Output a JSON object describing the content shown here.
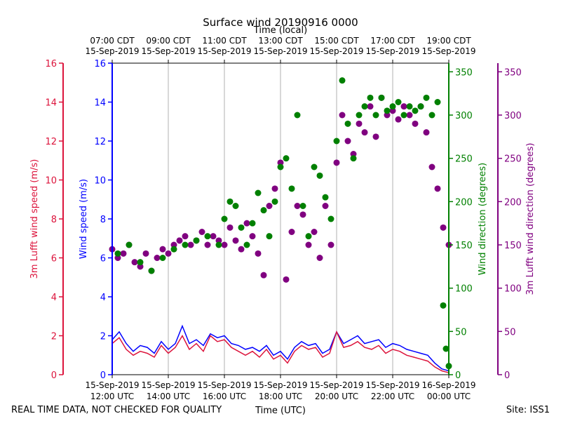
{
  "title": "Surface wind 20190916 0000",
  "top_axis_label": "Time (local)",
  "bottom_axis_label": "Time (UTC)",
  "footer_left": "REAL TIME DATA, NOT CHECKED FOR QUALITY",
  "footer_right": "Site: ISS1",
  "colors": {
    "wind_speed": "#0000ff",
    "lufft_speed": "#dc143c",
    "wind_dir": "#008000",
    "lufft_dir": "#800080",
    "grid": "#b0b0b0"
  },
  "chart_data": {
    "type": "line+scatter",
    "x_range_utc_hours": [
      12.0,
      24.0
    ],
    "x_ticks": [
      {
        "hour": 12,
        "utc_date": "15-Sep-2019",
        "utc_time": "12:00 UTC",
        "local_time": "07:00 CDT",
        "local_date": "15-Sep-2019"
      },
      {
        "hour": 14,
        "utc_date": "15-Sep-2019",
        "utc_time": "14:00 UTC",
        "local_time": "09:00 CDT",
        "local_date": "15-Sep-2019"
      },
      {
        "hour": 16,
        "utc_date": "15-Sep-2019",
        "utc_time": "16:00 UTC",
        "local_time": "11:00 CDT",
        "local_date": "15-Sep-2019"
      },
      {
        "hour": 18,
        "utc_date": "15-Sep-2019",
        "utc_time": "18:00 UTC",
        "local_time": "13:00 CDT",
        "local_date": "15-Sep-2019"
      },
      {
        "hour": 20,
        "utc_date": "15-Sep-2019",
        "utc_time": "20:00 UTC",
        "local_time": "15:00 CDT",
        "local_date": "15-Sep-2019"
      },
      {
        "hour": 22,
        "utc_date": "15-Sep-2019",
        "utc_time": "22:00 UTC",
        "local_time": "17:00 CDT",
        "local_date": "15-Sep-2019"
      },
      {
        "hour": 24,
        "utc_date": "16-Sep-2019",
        "utc_time": "00:00 UTC",
        "local_time": "19:00 CDT",
        "local_date": "15-Sep-2019"
      }
    ],
    "axes": {
      "lufft_speed": {
        "label": "3m Lufft wind speed (m/s)",
        "range": [
          0,
          16
        ],
        "ticks": [
          0,
          2,
          4,
          6,
          8,
          10,
          12,
          14,
          16
        ]
      },
      "wind_speed": {
        "label": "Wind speed (m/s)",
        "range": [
          0,
          16
        ],
        "ticks": [
          0,
          2,
          4,
          6,
          8,
          10,
          12,
          14,
          16
        ]
      },
      "wind_dir": {
        "label": "Wind direction (degrees)",
        "range": [
          0,
          360
        ],
        "ticks": [
          0,
          50,
          100,
          150,
          200,
          250,
          300,
          350
        ]
      },
      "lufft_dir": {
        "label": "3m Lufft wind direction (degrees)",
        "range": [
          0,
          360
        ],
        "ticks": [
          0,
          50,
          100,
          150,
          200,
          250,
          300,
          350
        ]
      }
    },
    "series": [
      {
        "name": "Wind speed",
        "kind": "line",
        "axis": "wind_speed",
        "points": [
          [
            12.0,
            1.8
          ],
          [
            12.25,
            2.2
          ],
          [
            12.5,
            1.6
          ],
          [
            12.75,
            1.2
          ],
          [
            13.0,
            1.5
          ],
          [
            13.25,
            1.4
          ],
          [
            13.5,
            1.1
          ],
          [
            13.75,
            1.7
          ],
          [
            14.0,
            1.3
          ],
          [
            14.25,
            1.6
          ],
          [
            14.5,
            2.5
          ],
          [
            14.75,
            1.6
          ],
          [
            15.0,
            1.8
          ],
          [
            15.25,
            1.5
          ],
          [
            15.5,
            2.1
          ],
          [
            15.75,
            1.9
          ],
          [
            16.0,
            2.0
          ],
          [
            16.25,
            1.6
          ],
          [
            16.5,
            1.5
          ],
          [
            16.75,
            1.3
          ],
          [
            17.0,
            1.4
          ],
          [
            17.25,
            1.2
          ],
          [
            17.5,
            1.5
          ],
          [
            17.75,
            1.0
          ],
          [
            18.0,
            1.2
          ],
          [
            18.25,
            0.8
          ],
          [
            18.5,
            1.4
          ],
          [
            18.75,
            1.7
          ],
          [
            19.0,
            1.5
          ],
          [
            19.25,
            1.6
          ],
          [
            19.5,
            1.1
          ],
          [
            19.75,
            1.3
          ],
          [
            20.0,
            2.2
          ],
          [
            20.25,
            1.6
          ],
          [
            20.5,
            1.8
          ],
          [
            20.75,
            2.0
          ],
          [
            21.0,
            1.6
          ],
          [
            21.25,
            1.7
          ],
          [
            21.5,
            1.8
          ],
          [
            21.75,
            1.4
          ],
          [
            22.0,
            1.6
          ],
          [
            22.25,
            1.5
          ],
          [
            22.5,
            1.3
          ],
          [
            22.75,
            1.2
          ],
          [
            23.0,
            1.1
          ],
          [
            23.25,
            1.0
          ],
          [
            23.5,
            0.6
          ],
          [
            23.75,
            0.3
          ],
          [
            24.0,
            0.2
          ]
        ]
      },
      {
        "name": "3m Lufft wind speed",
        "kind": "line",
        "axis": "lufft_speed",
        "points": [
          [
            12.0,
            1.6
          ],
          [
            12.25,
            1.9
          ],
          [
            12.5,
            1.3
          ],
          [
            12.75,
            1.0
          ],
          [
            13.0,
            1.2
          ],
          [
            13.25,
            1.1
          ],
          [
            13.5,
            0.9
          ],
          [
            13.75,
            1.5
          ],
          [
            14.0,
            1.1
          ],
          [
            14.25,
            1.4
          ],
          [
            14.5,
            2.0
          ],
          [
            14.75,
            1.3
          ],
          [
            15.0,
            1.6
          ],
          [
            15.25,
            1.2
          ],
          [
            15.5,
            2.0
          ],
          [
            15.75,
            1.7
          ],
          [
            16.0,
            1.8
          ],
          [
            16.25,
            1.4
          ],
          [
            16.5,
            1.2
          ],
          [
            16.75,
            1.0
          ],
          [
            17.0,
            1.2
          ],
          [
            17.25,
            0.9
          ],
          [
            17.5,
            1.3
          ],
          [
            17.75,
            0.8
          ],
          [
            18.0,
            1.0
          ],
          [
            18.25,
            0.6
          ],
          [
            18.5,
            1.2
          ],
          [
            18.75,
            1.5
          ],
          [
            19.0,
            1.3
          ],
          [
            19.25,
            1.4
          ],
          [
            19.5,
            0.9
          ],
          [
            19.75,
            1.1
          ],
          [
            20.0,
            2.2
          ],
          [
            20.25,
            1.4
          ],
          [
            20.5,
            1.5
          ],
          [
            20.75,
            1.7
          ],
          [
            21.0,
            1.4
          ],
          [
            21.25,
            1.3
          ],
          [
            21.5,
            1.5
          ],
          [
            21.75,
            1.1
          ],
          [
            22.0,
            1.3
          ],
          [
            22.25,
            1.2
          ],
          [
            22.5,
            1.0
          ],
          [
            22.75,
            0.9
          ],
          [
            23.0,
            0.8
          ],
          [
            23.25,
            0.7
          ],
          [
            23.5,
            0.4
          ],
          [
            23.75,
            0.2
          ],
          [
            24.0,
            0.1
          ]
        ]
      },
      {
        "name": "Wind direction",
        "kind": "scatter",
        "axis": "wind_dir",
        "points": [
          [
            12.2,
            140
          ],
          [
            12.6,
            150
          ],
          [
            13.0,
            130
          ],
          [
            13.4,
            120
          ],
          [
            13.8,
            135
          ],
          [
            14.2,
            145
          ],
          [
            14.6,
            150
          ],
          [
            15.0,
            155
          ],
          [
            15.4,
            160
          ],
          [
            15.8,
            150
          ],
          [
            16.0,
            180
          ],
          [
            16.2,
            200
          ],
          [
            16.4,
            195
          ],
          [
            16.6,
            170
          ],
          [
            16.8,
            150
          ],
          [
            17.0,
            175
          ],
          [
            17.2,
            210
          ],
          [
            17.4,
            190
          ],
          [
            17.6,
            160
          ],
          [
            17.8,
            200
          ],
          [
            18.0,
            240
          ],
          [
            18.2,
            250
          ],
          [
            18.4,
            215
          ],
          [
            18.6,
            300
          ],
          [
            18.8,
            195
          ],
          [
            19.0,
            160
          ],
          [
            19.2,
            240
          ],
          [
            19.4,
            230
          ],
          [
            19.6,
            205
          ],
          [
            19.8,
            180
          ],
          [
            20.0,
            270
          ],
          [
            20.2,
            340
          ],
          [
            20.4,
            290
          ],
          [
            20.6,
            250
          ],
          [
            20.8,
            300
          ],
          [
            21.0,
            310
          ],
          [
            21.2,
            320
          ],
          [
            21.4,
            300
          ],
          [
            21.6,
            320
          ],
          [
            21.8,
            305
          ],
          [
            22.0,
            310
          ],
          [
            22.2,
            315
          ],
          [
            22.4,
            300
          ],
          [
            22.6,
            310
          ],
          [
            22.8,
            305
          ],
          [
            23.0,
            310
          ],
          [
            23.2,
            320
          ],
          [
            23.4,
            300
          ],
          [
            23.6,
            315
          ],
          [
            23.8,
            80
          ],
          [
            23.9,
            30
          ],
          [
            24.0,
            10
          ]
        ]
      },
      {
        "name": "3m Lufft wind direction",
        "kind": "scatter",
        "axis": "lufft_dir",
        "points": [
          [
            12.0,
            145
          ],
          [
            12.2,
            135
          ],
          [
            12.4,
            140
          ],
          [
            12.6,
            150
          ],
          [
            12.8,
            130
          ],
          [
            13.0,
            125
          ],
          [
            13.2,
            140
          ],
          [
            13.4,
            120
          ],
          [
            13.6,
            135
          ],
          [
            13.8,
            145
          ],
          [
            14.0,
            140
          ],
          [
            14.2,
            150
          ],
          [
            14.4,
            155
          ],
          [
            14.6,
            160
          ],
          [
            14.8,
            150
          ],
          [
            15.0,
            155
          ],
          [
            15.2,
            165
          ],
          [
            15.4,
            150
          ],
          [
            15.6,
            160
          ],
          [
            15.8,
            155
          ],
          [
            16.0,
            150
          ],
          [
            16.2,
            170
          ],
          [
            16.4,
            155
          ],
          [
            16.6,
            145
          ],
          [
            16.8,
            175
          ],
          [
            17.0,
            160
          ],
          [
            17.2,
            140
          ],
          [
            17.4,
            115
          ],
          [
            17.6,
            195
          ],
          [
            17.8,
            215
          ],
          [
            18.0,
            245
          ],
          [
            18.2,
            110
          ],
          [
            18.4,
            165
          ],
          [
            18.6,
            195
          ],
          [
            18.8,
            185
          ],
          [
            19.0,
            150
          ],
          [
            19.2,
            165
          ],
          [
            19.4,
            135
          ],
          [
            19.6,
            195
          ],
          [
            19.8,
            150
          ],
          [
            20.0,
            245
          ],
          [
            20.2,
            300
          ],
          [
            20.4,
            270
          ],
          [
            20.6,
            255
          ],
          [
            20.8,
            290
          ],
          [
            21.0,
            280
          ],
          [
            21.2,
            310
          ],
          [
            21.4,
            275
          ],
          [
            21.6,
            320
          ],
          [
            21.8,
            300
          ],
          [
            22.0,
            305
          ],
          [
            22.2,
            295
          ],
          [
            22.4,
            310
          ],
          [
            22.6,
            300
          ],
          [
            22.8,
            290
          ],
          [
            23.0,
            310
          ],
          [
            23.2,
            280
          ],
          [
            23.4,
            240
          ],
          [
            23.6,
            215
          ],
          [
            23.8,
            170
          ],
          [
            24.0,
            150
          ]
        ]
      }
    ]
  }
}
